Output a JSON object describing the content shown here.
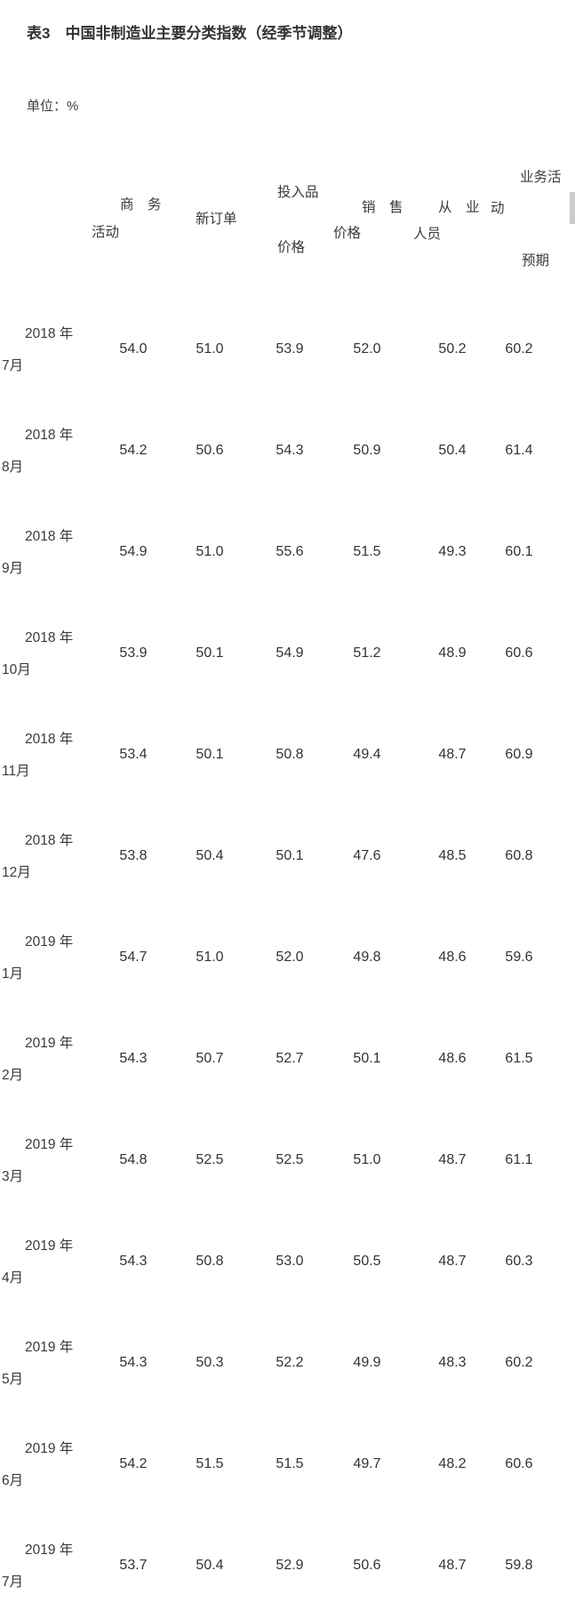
{
  "page": {
    "title": "表3　中国非制造业主要分类指数（经季节调整）",
    "unit_label": "单位：%"
  },
  "table": {
    "header": [
      {
        "name": "business-activity",
        "lines": [
          "商　务",
          "活动"
        ]
      },
      {
        "name": "new-orders",
        "lines": [
          "新订单"
        ]
      },
      {
        "name": "input-prices",
        "lines": [
          "投入品",
          "价格"
        ]
      },
      {
        "name": "selling-prices",
        "lines": [
          "销　售",
          "价格"
        ]
      },
      {
        "name": "employment",
        "lines": [
          "从　业",
          "人员"
        ]
      },
      {
        "name": "business-activity-expectation",
        "lines": [
          "业务活",
          "动",
          "预期"
        ]
      }
    ],
    "rows": [
      {
        "year": "2018 年",
        "month": "7月",
        "values": [
          "54.0",
          "51.0",
          "53.9",
          "52.0",
          "50.2",
          "60.2"
        ]
      },
      {
        "year": "2018 年",
        "month": "8月",
        "values": [
          "54.2",
          "50.6",
          "54.3",
          "50.9",
          "50.4",
          "61.4"
        ]
      },
      {
        "year": "2018 年",
        "month": "9月",
        "values": [
          "54.9",
          "51.0",
          "55.6",
          "51.5",
          "49.3",
          "60.1"
        ]
      },
      {
        "year": "2018 年",
        "month": "10月",
        "values": [
          "53.9",
          "50.1",
          "54.9",
          "51.2",
          "48.9",
          "60.6"
        ]
      },
      {
        "year": "2018 年",
        "month": "11月",
        "values": [
          "53.4",
          "50.1",
          "50.8",
          "49.4",
          "48.7",
          "60.9"
        ]
      },
      {
        "year": "2018 年",
        "month": "12月",
        "values": [
          "53.8",
          "50.4",
          "50.1",
          "47.6",
          "48.5",
          "60.8"
        ]
      },
      {
        "year": "2019 年",
        "month": "1月",
        "values": [
          "54.7",
          "51.0",
          "52.0",
          "49.8",
          "48.6",
          "59.6"
        ]
      },
      {
        "year": "2019 年",
        "month": "2月",
        "values": [
          "54.3",
          "50.7",
          "52.7",
          "50.1",
          "48.6",
          "61.5"
        ]
      },
      {
        "year": "2019 年",
        "month": "3月",
        "values": [
          "54.8",
          "52.5",
          "52.5",
          "51.0",
          "48.7",
          "61.1"
        ]
      },
      {
        "year": "2019 年",
        "month": "4月",
        "values": [
          "54.3",
          "50.8",
          "53.0",
          "50.5",
          "48.7",
          "60.3"
        ]
      },
      {
        "year": "2019 年",
        "month": "5月",
        "values": [
          "54.3",
          "50.3",
          "52.2",
          "49.9",
          "48.3",
          "60.2"
        ]
      },
      {
        "year": "2019 年",
        "month": "6月",
        "values": [
          "54.2",
          "51.5",
          "51.5",
          "49.7",
          "48.2",
          "60.6"
        ]
      },
      {
        "year": "2019 年",
        "month": "7月",
        "values": [
          "53.7",
          "50.4",
          "52.9",
          "50.6",
          "48.7",
          "59.8"
        ]
      }
    ]
  }
}
